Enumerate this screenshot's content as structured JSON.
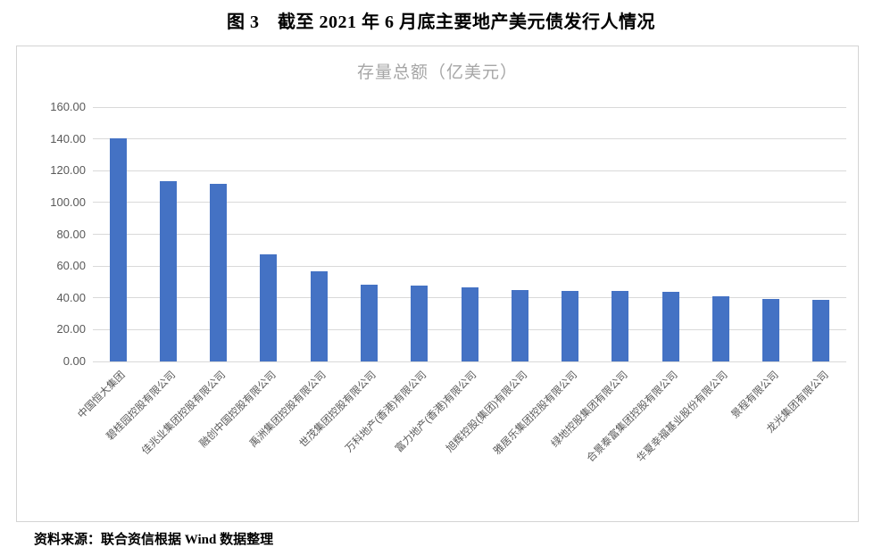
{
  "document": {
    "figure_title": "图 3　截至 2021 年 6 月底主要地产美元债发行人情况",
    "source_note": "资料来源：联合资信根据 Wind 数据整理"
  },
  "chart_data": {
    "type": "bar",
    "title": "存量总额（亿美元）",
    "categories": [
      "中国恒大集团",
      "碧桂园控股有限公司",
      "佳兆业集团控股有限公司",
      "融创中国控股有限公司",
      "禹洲集团控股有限公司",
      "世茂集团控股有限公司",
      "万科地产(香港)有限公司",
      "富力地产(香港)有限公司",
      "旭辉控股(集团)有限公司",
      "雅居乐集团控股有限公司",
      "绿地控股集团有限公司",
      "合景泰富集团控股有限公司",
      "华夏幸福基业股份有限公司",
      "景程有限公司",
      "龙光集团有限公司"
    ],
    "values": [
      140.5,
      113.5,
      111.5,
      67.5,
      56.5,
      48.5,
      47.5,
      46.5,
      45.0,
      44.5,
      44.5,
      44.0,
      41.0,
      39.5,
      38.5
    ],
    "xlabel": "",
    "ylabel": "",
    "ylim": [
      0,
      160
    ],
    "ytick_interval": 20,
    "ytick_labels": [
      "0.00",
      "20.00",
      "40.00",
      "60.00",
      "80.00",
      "100.00",
      "120.00",
      "140.00",
      "160.00"
    ],
    "grid": true,
    "legend": "none",
    "bar_color": "#4472C4",
    "gridline_color": "#d9d9d9",
    "axis_label_color": "#595959",
    "title_color": "#a6a6a6"
  }
}
